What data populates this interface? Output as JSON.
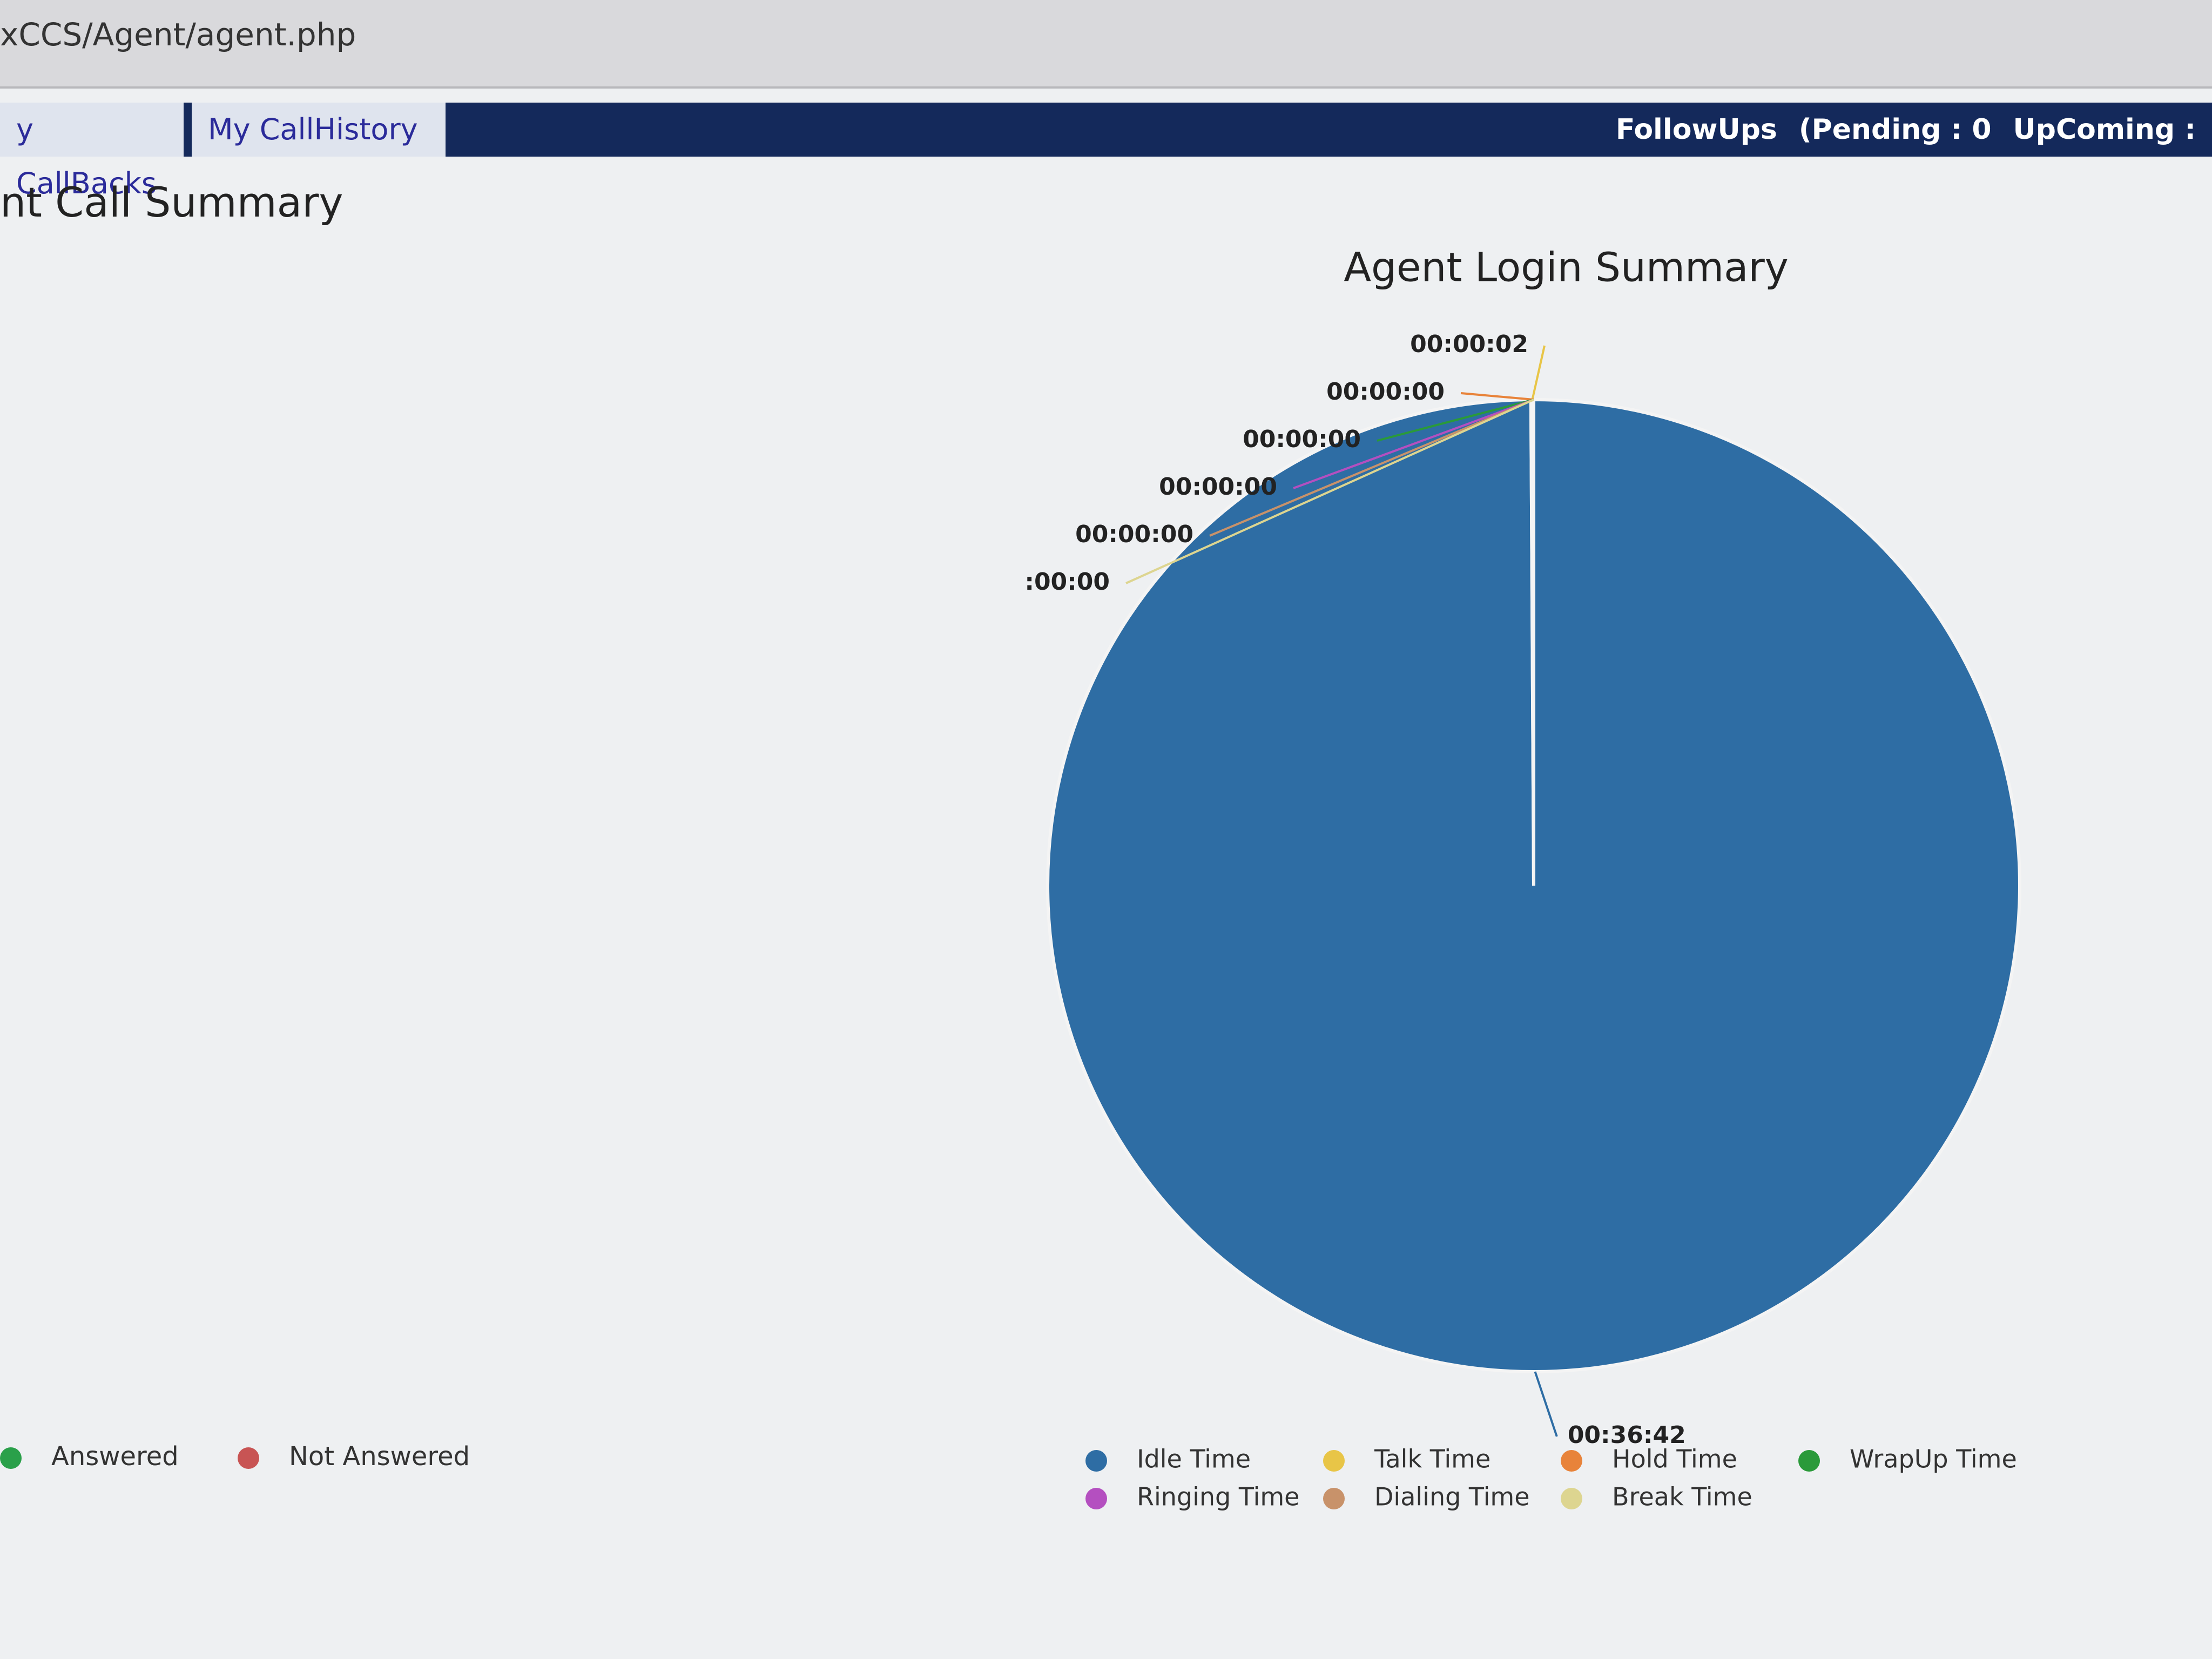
{
  "address_bar": {
    "url": "xCCS/Agent/agent.php"
  },
  "tabs": [
    "y CallBacks",
    "My CallHistory"
  ],
  "followups": {
    "label": "FollowUps",
    "pending": "(Pending : 0",
    "upcoming": "UpComing :"
  },
  "left_panel": {
    "title": "nt Call Summary",
    "legend": [
      {
        "name": "Answered",
        "color": "#2aa04a"
      },
      {
        "name": "Not Answered",
        "color": "#c85454"
      }
    ]
  },
  "chart_data": {
    "type": "pie",
    "title": "Agent Login Summary",
    "categories": [
      "Idle Time",
      "Talk Time",
      "Hold Time",
      "WrapUp Time",
      "Ringing Time",
      "Dialing Time",
      "Break Time"
    ],
    "values": [
      2202,
      2,
      0,
      0,
      0,
      0,
      0
    ],
    "value_labels": [
      "00:36:42",
      "00:00:02",
      "00:00:00",
      "00:00:00",
      "00:00:00",
      "00:00:00",
      ":00:00"
    ],
    "colors": [
      "#2e6da4",
      "#e8c547",
      "#e8833a",
      "#2a9a3a",
      "#b44fc0",
      "#c8926a",
      "#ddd590"
    ]
  }
}
